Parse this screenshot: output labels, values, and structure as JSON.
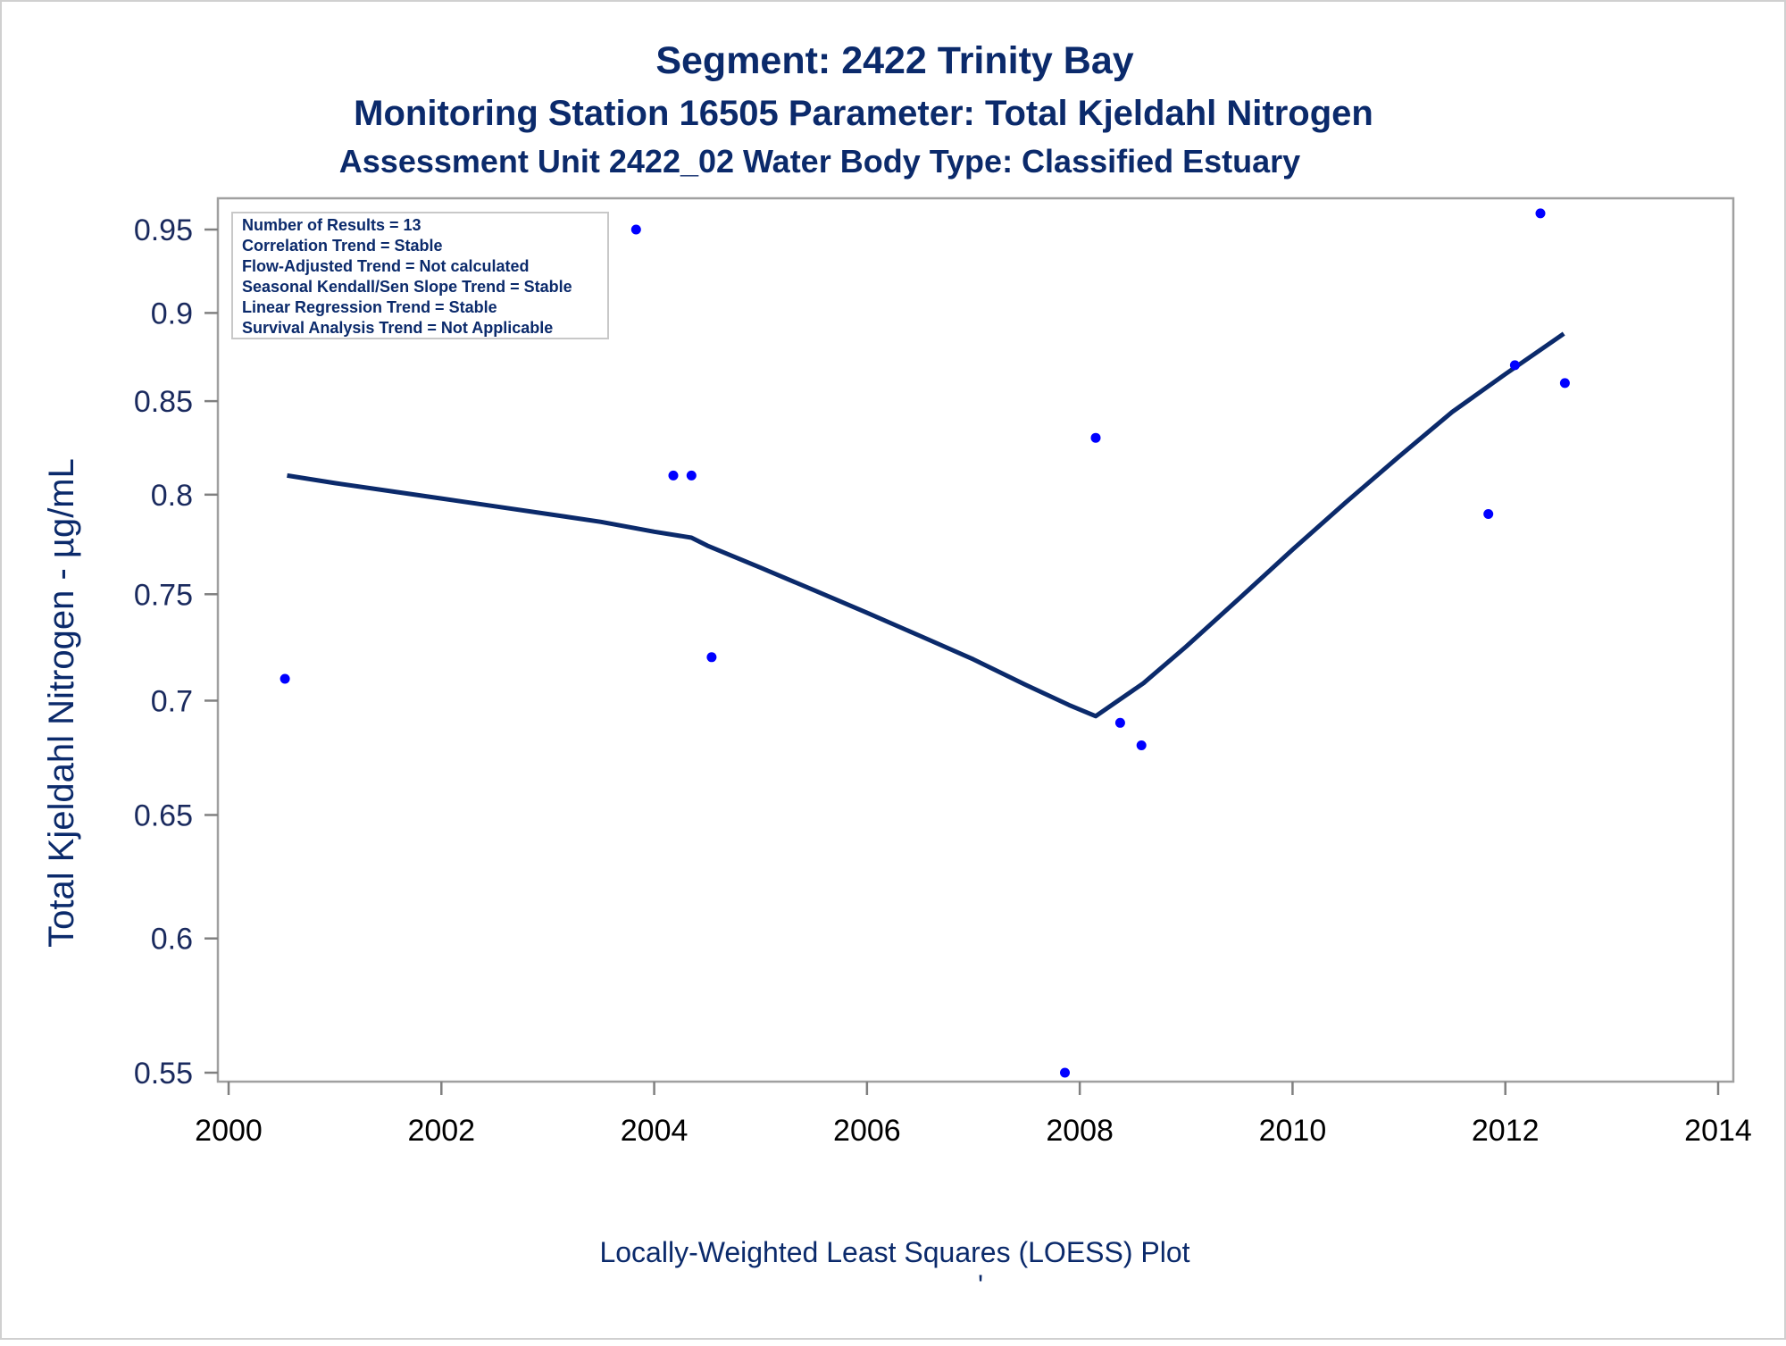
{
  "titles": {
    "line1": "Segment: 2422  Trinity Bay",
    "line2": "Monitoring Station 16505 Parameter: Total Kjeldahl Nitrogen",
    "line3": "Assessment Unit 2422_02   Water Body Type: Classified Estuary"
  },
  "footnote": "Locally-Weighted Least Squares (LOESS) Plot",
  "footnote_mark": "'",
  "stats_box": [
    "Number of Results = 13",
    "Correlation Trend = Stable",
    "Flow-Adjusted Trend = Not calculated",
    "Seasonal Kendall/Sen Slope Trend = Stable",
    "Linear Regression Trend = Stable",
    "Survival Analysis Trend = Not Applicable"
  ],
  "colors": {
    "title": "#0b2a6b",
    "points": "#0000ff",
    "loess_line": "#0b2a6b",
    "frame": "#a0a0a0"
  },
  "chart_data": {
    "type": "scatter",
    "xlabel": "",
    "ylabel": "Total Kjeldahl Nitrogen -  µg/mL",
    "x_scale": "linear",
    "y_scale": "log",
    "xlim": [
      2000,
      2014
    ],
    "ylim": [
      0.55,
      0.96
    ],
    "x_ticks": [
      2000,
      2002,
      2004,
      2006,
      2008,
      2010,
      2012,
      2014
    ],
    "x_tick_labels": [
      "2000",
      "2002",
      "2004",
      "2006",
      "2008",
      "2010",
      "2012",
      "2014"
    ],
    "y_ticks": [
      0.55,
      0.6,
      0.65,
      0.7,
      0.75,
      0.8,
      0.85,
      0.9,
      0.95
    ],
    "y_tick_labels": [
      "0.55",
      "0.6",
      "0.65",
      "0.7",
      "0.75",
      "0.8",
      "0.85",
      "0.9",
      "0.95"
    ],
    "grid": false,
    "legend": "top-left",
    "points": {
      "x": [
        2000.53,
        2003.83,
        2004.18,
        2004.35,
        2004.54,
        2007.86,
        2008.15,
        2008.38,
        2008.58,
        2011.84,
        2012.09,
        2012.33,
        2012.56
      ],
      "y": [
        0.71,
        0.95,
        0.81,
        0.81,
        0.72,
        0.55,
        0.83,
        0.69,
        0.68,
        0.79,
        0.87,
        0.96,
        0.86
      ]
    },
    "loess": {
      "x": [
        2000.55,
        2001.0,
        2001.5,
        2002.0,
        2002.5,
        2003.0,
        2003.5,
        2004.0,
        2004.35,
        2004.5,
        2005.0,
        2005.5,
        2006.0,
        2006.5,
        2007.0,
        2007.5,
        2007.9,
        2008.15,
        2008.3,
        2008.6,
        2009.0,
        2009.5,
        2010.0,
        2010.5,
        2011.0,
        2011.5,
        2012.0,
        2012.55
      ],
      "y": [
        0.81,
        0.806,
        0.802,
        0.798,
        0.794,
        0.79,
        0.786,
        0.781,
        0.778,
        0.774,
        0.763,
        0.752,
        0.741,
        0.73,
        0.719,
        0.707,
        0.698,
        0.693,
        0.698,
        0.708,
        0.725,
        0.748,
        0.772,
        0.796,
        0.82,
        0.844,
        0.865,
        0.888
      ]
    }
  }
}
